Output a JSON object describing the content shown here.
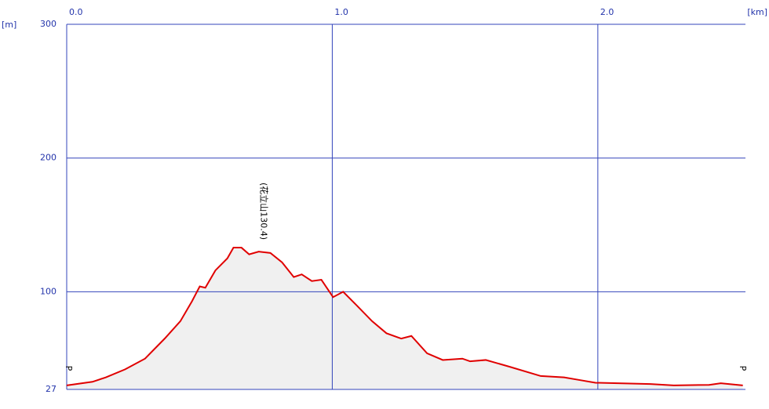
{
  "chart_data": {
    "type": "line",
    "x_label": "[km]",
    "y_label": "[m]",
    "x": [
      0,
      0.097,
      0.147,
      0.22,
      0.295,
      0.369,
      0.428,
      0.472,
      0.501,
      0.522,
      0.56,
      0.605,
      0.628,
      0.658,
      0.687,
      0.723,
      0.767,
      0.811,
      0.855,
      0.885,
      0.923,
      0.959,
      1.003,
      1.041,
      1.091,
      1.15,
      1.204,
      1.26,
      1.298,
      1.357,
      1.416,
      1.49,
      1.519,
      1.578,
      1.667,
      1.785,
      1.873,
      1.932,
      1.991,
      2.198,
      2.286,
      2.419,
      2.463,
      2.546
    ],
    "values": [
      30,
      32.7,
      36,
      42,
      50,
      65,
      78,
      93,
      104,
      103,
      116,
      125,
      133,
      133,
      128,
      130,
      129,
      122,
      111,
      113,
      108,
      109,
      96,
      100,
      90,
      78,
      69,
      65,
      67,
      54,
      49,
      50,
      48,
      49,
      44,
      37,
      36,
      34,
      32,
      31,
      30,
      30.4,
      31.6,
      30
    ],
    "color": "#e00000",
    "fill": "#f0f0f0",
    "xlim": [
      0,
      2.55
    ],
    "xticks": [
      {
        "value": 0,
        "label": "0.0"
      },
      {
        "value": 1,
        "label": "1.0"
      },
      {
        "value": 2,
        "label": "2.0"
      }
    ],
    "ylim": [
      27,
      300
    ],
    "yticks": [
      27,
      100,
      200,
      300
    ],
    "grid": true,
    "grid_color": "#3344bb",
    "annotations": [
      {
        "text": "(花立山130.4)",
        "x": 0.74,
        "y": 133
      },
      {
        "text": "P",
        "x": 0,
        "y": 30
      },
      {
        "text": "P",
        "x": 2.55,
        "y": 30
      }
    ]
  }
}
